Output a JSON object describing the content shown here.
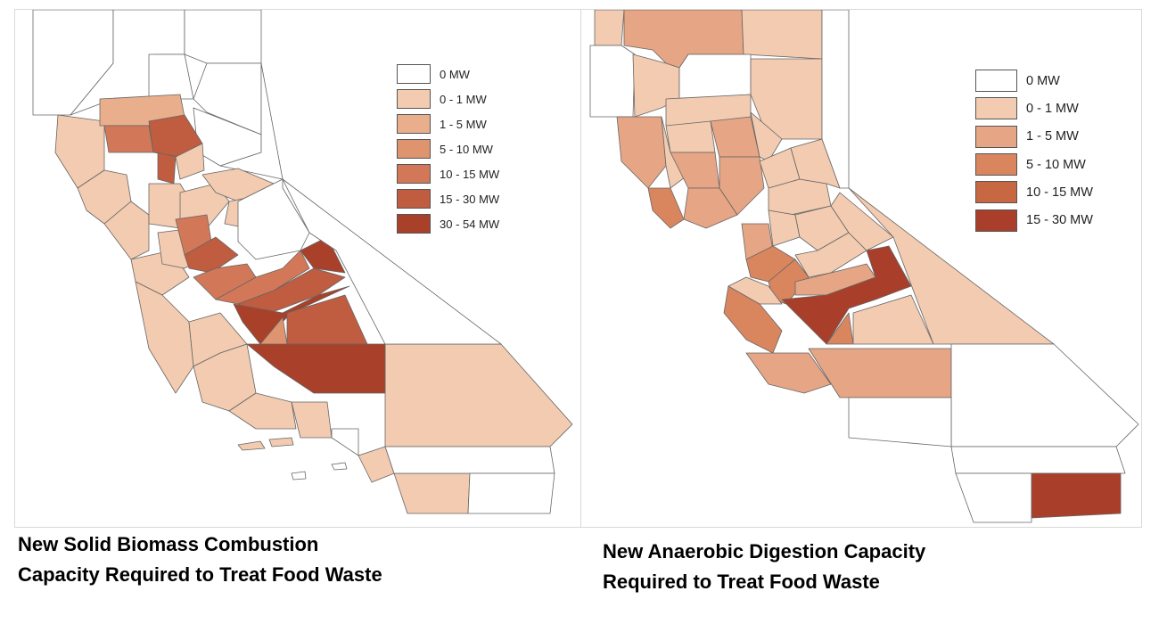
{
  "maps": [
    {
      "caption_lines": [
        "New Solid Biomass Combustion",
        "Capacity Required to Treat Food Waste"
      ],
      "legend": [
        {
          "label": "0 MW",
          "color": "#ffffff"
        },
        {
          "label": "0 - 1 MW",
          "color": "#f2cbb0"
        },
        {
          "label": "1 - 5 MW",
          "color": "#e9ae8c"
        },
        {
          "label": "5 - 10 MW",
          "color": "#df9470"
        },
        {
          "label": "10 - 15 MW",
          "color": "#d27858"
        },
        {
          "label": "15 - 30 MW",
          "color": "#c05c3f"
        },
        {
          "label": "30 - 54 MW",
          "color": "#a9402a"
        }
      ]
    },
    {
      "caption_lines": [
        "New Anaerobic Digestion Capacity",
        "Required to Treat Food Waste"
      ],
      "legend": [
        {
          "label": "0 MW",
          "color": "#ffffff"
        },
        {
          "label": "0 - 1 MW",
          "color": "#f2cbb0"
        },
        {
          "label": "1 - 5 MW",
          "color": "#e6a584"
        },
        {
          "label": "5 - 10 MW",
          "color": "#d9865f"
        },
        {
          "label": "10 - 15 MW",
          "color": "#c86843"
        },
        {
          "label": "15 - 30 MW",
          "color": "#a93f2a"
        }
      ]
    }
  ]
}
